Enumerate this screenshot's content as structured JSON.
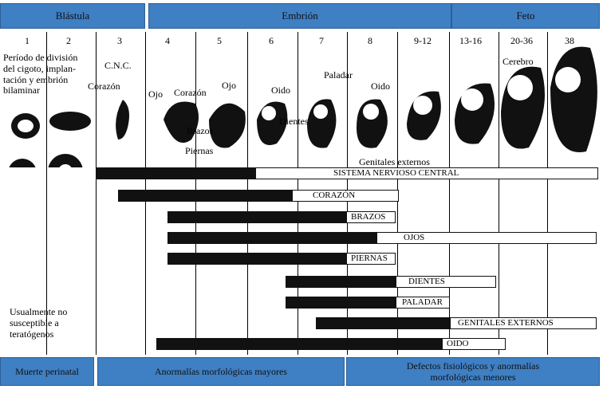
{
  "header": {
    "blastula": "Blástula",
    "embryo": "Embrión",
    "fetus": "Feto"
  },
  "weeks": [
    "1",
    "2",
    "3",
    "4",
    "5",
    "6",
    "7",
    "8",
    "9-12",
    "13-16",
    "20-36",
    "38"
  ],
  "notes": {
    "period_text_1": "Período de división",
    "period_text_2": "del cigoto, implan-",
    "period_text_3": "tación  y embrión",
    "period_text_4": "bilaminar",
    "not_susceptible_1": "Usualmente no",
    "not_susceptible_2": "susceptible a",
    "not_susceptible_3": "teratógenos"
  },
  "labels": {
    "cnc": "C.N.C.",
    "corazon_w3": "Corazón",
    "ojo_left": "Ojo",
    "corazon_w45": "Corazón",
    "ojo_right": "Ojo",
    "brazos": "Brazos",
    "piernas": "Piernas",
    "oido_w6": "Oido",
    "dientes": "Dientes",
    "paladar": "Paladar",
    "oido_w8": "Oido",
    "genitales": "Genitales  externos",
    "cerebro": "Cerebro"
  },
  "bars": [
    {
      "label": "SISTEMA NERVIOSO CENTRAL"
    },
    {
      "label": "CORAZÓN"
    },
    {
      "label": "BRAZOS"
    },
    {
      "label": "OJOS"
    },
    {
      "label": "PIERNAS"
    },
    {
      "label": "DIENTES"
    },
    {
      "label": "PALADAR"
    },
    {
      "label": "GENITALES EXTERNOS"
    },
    {
      "label": "OIDO"
    }
  ],
  "footer": {
    "perinatal": "Muerte perinatal",
    "major": "Anormalías morfológicas mayores",
    "minor_1": "Defectos fisiológicos y anormalías",
    "minor_2": "morfológicas menores"
  },
  "colors": {
    "header_bg": "#3f7fc3",
    "bar_dark": "#111111"
  }
}
